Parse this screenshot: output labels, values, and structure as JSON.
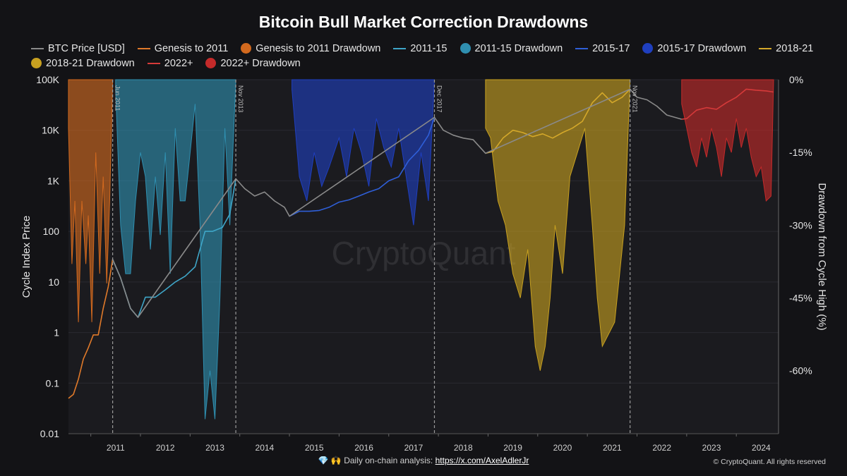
{
  "chart_data": {
    "type": "line",
    "title": "Bitcoin Bull Market Correction Drawdowns",
    "ylabel_left": "Cycle Index Price",
    "ylabel_right": "Drawdown from Cycle High (%)",
    "y_left_scale": "log",
    "y_left_range": [
      0.01,
      100000
    ],
    "y_left_ticks": [
      0.01,
      0.1,
      1,
      10,
      100,
      1000,
      10000,
      100000
    ],
    "y_left_tick_labels": [
      "0.01",
      "0.1",
      "1",
      "10",
      "100",
      "1K",
      "10K",
      "100K"
    ],
    "y_right_range": [
      -73,
      0
    ],
    "y_right_ticks": [
      0,
      -15,
      -30,
      -45,
      -60
    ],
    "y_right_tick_labels": [
      "0%",
      "-15%",
      "-30%",
      "-45%",
      "-60%"
    ],
    "x_range": [
      2010.55,
      2024.85
    ],
    "x_ticks": [
      2011,
      2012,
      2013,
      2014,
      2015,
      2016,
      2017,
      2018,
      2019,
      2020,
      2021,
      2022,
      2023,
      2024
    ],
    "x_tick_labels": [
      "2011",
      "2012",
      "2013",
      "2014",
      "2015",
      "2016",
      "2017",
      "2018",
      "2019",
      "2020",
      "2021",
      "2022",
      "2023",
      "2024"
    ],
    "cycle_markers": [
      {
        "x": 2011.44,
        "label": "Jun 2011"
      },
      {
        "x": 2013.92,
        "label": "Nov 2013"
      },
      {
        "x": 2017.92,
        "label": "Dec 2017"
      },
      {
        "x": 2021.86,
        "label": "Nov 2021"
      }
    ],
    "legend": [
      {
        "name": "BTC Price [USD]",
        "kind": "line",
        "color": "#8a8a8a"
      },
      {
        "name": "Genesis to 2011",
        "kind": "line",
        "color": "#e07a2a"
      },
      {
        "name": "Genesis to 2011 Drawdown",
        "kind": "area",
        "color": "#d2691e"
      },
      {
        "name": "2011-15",
        "kind": "line",
        "color": "#3fa6c8"
      },
      {
        "name": "2011-15 Drawdown",
        "kind": "area",
        "color": "#2f8fb0"
      },
      {
        "name": "2015-17",
        "kind": "line",
        "color": "#2f5fd8"
      },
      {
        "name": "2015-17 Drawdown",
        "kind": "area",
        "color": "#1f3fbf"
      },
      {
        "name": "2018-21",
        "kind": "line",
        "color": "#d4a82a"
      },
      {
        "name": "2018-21 Drawdown",
        "kind": "area",
        "color": "#c7a020"
      },
      {
        "name": "2022+",
        "kind": "line",
        "color": "#d63a3a"
      },
      {
        "name": "2022+ Drawdown",
        "kind": "area",
        "color": "#c42a2a"
      }
    ],
    "series": [
      {
        "name": "Genesis to 2011",
        "color": "#e07a2a",
        "x": [
          2010.55,
          2010.65,
          2010.75,
          2010.85,
          2010.95,
          2011.05,
          2011.15,
          2011.25,
          2011.35,
          2011.44
        ],
        "y": [
          0.05,
          0.06,
          0.12,
          0.3,
          0.5,
          0.9,
          0.9,
          3,
          8,
          28
        ]
      },
      {
        "name": "2011-15",
        "color": "#3fa6c8",
        "x": [
          2011.44,
          2011.6,
          2011.8,
          2011.95,
          2012.1,
          2012.3,
          2012.5,
          2012.7,
          2012.9,
          2013.1,
          2013.3,
          2013.45,
          2013.65,
          2013.8,
          2013.92
        ],
        "y": [
          28,
          12,
          3,
          2,
          5,
          5,
          7,
          10,
          13,
          20,
          100,
          100,
          120,
          220,
          1100
        ]
      },
      {
        "name": "2015-17",
        "color": "#2f5fd8",
        "x": [
          2015.0,
          2015.2,
          2015.4,
          2015.6,
          2015.8,
          2016.0,
          2016.2,
          2016.4,
          2016.6,
          2016.8,
          2017.0,
          2017.2,
          2017.4,
          2017.6,
          2017.8,
          2017.92
        ],
        "y": [
          200,
          250,
          250,
          260,
          300,
          380,
          420,
          500,
          600,
          700,
          1000,
          1200,
          2500,
          4000,
          8000,
          18000
        ]
      },
      {
        "name": "2018-21",
        "color": "#d4a82a",
        "x": [
          2018.95,
          2019.1,
          2019.3,
          2019.5,
          2019.7,
          2019.9,
          2020.1,
          2020.3,
          2020.5,
          2020.7,
          2020.9,
          2021.1,
          2021.3,
          2021.5,
          2021.7,
          2021.86
        ],
        "y": [
          3500,
          3800,
          7000,
          10000,
          9000,
          7500,
          8500,
          7000,
          9000,
          11000,
          15000,
          35000,
          55000,
          35000,
          45000,
          65000
        ]
      },
      {
        "name": "2022+",
        "color": "#d63a3a",
        "x": [
          2022.9,
          2023.0,
          2023.2,
          2023.4,
          2023.6,
          2023.8,
          2024.0,
          2024.2,
          2024.4,
          2024.6,
          2024.75
        ],
        "y": [
          16500,
          17000,
          25000,
          28000,
          26000,
          35000,
          45000,
          65000,
          62000,
          60000,
          57000
        ]
      },
      {
        "name": "BTC Price [USD]",
        "color": "#8a8a8a",
        "x": [
          2011.44,
          2011.6,
          2011.8,
          2011.95,
          2013.92,
          2014.1,
          2014.3,
          2014.5,
          2014.7,
          2014.9,
          2015.0,
          2017.92,
          2018.1,
          2018.3,
          2018.5,
          2018.7,
          2018.95,
          2021.86,
          2022.0,
          2022.2,
          2022.4,
          2022.6,
          2022.9
        ],
        "y": [
          28,
          12,
          3,
          2,
          1100,
          700,
          500,
          600,
          400,
          300,
          200,
          18000,
          10000,
          8000,
          7000,
          6500,
          3500,
          65000,
          45000,
          40000,
          30000,
          20000,
          16500
        ]
      }
    ],
    "drawdowns": [
      {
        "name": "Genesis to 2011 Drawdown",
        "color": "#d2691e",
        "x": [
          2010.55,
          2010.62,
          2010.68,
          2010.75,
          2010.82,
          2010.9,
          2010.95,
          2011.02,
          2011.1,
          2011.18,
          2011.25,
          2011.32,
          2011.38,
          2011.44
        ],
        "y": [
          -10,
          -38,
          -25,
          -50,
          -25,
          -38,
          -28,
          -50,
          -15,
          -40,
          -20,
          -42,
          -25,
          0
        ]
      },
      {
        "name": "2011-15 Drawdown",
        "color": "#2f8fb0",
        "x": [
          2011.5,
          2011.6,
          2011.7,
          2011.8,
          2011.9,
          2012.0,
          2012.1,
          2012.2,
          2012.3,
          2012.4,
          2012.5,
          2012.6,
          2012.7,
          2012.8,
          2012.9,
          2013.0,
          2013.1,
          2013.2,
          2013.3,
          2013.4,
          2013.5,
          2013.6,
          2013.7,
          2013.8,
          2013.92
        ],
        "y": [
          -2,
          -30,
          -40,
          -40,
          -25,
          -15,
          -20,
          -35,
          -20,
          -32,
          -15,
          -40,
          -10,
          -25,
          -25,
          -15,
          -5,
          -30,
          -70,
          -60,
          -70,
          -45,
          -10,
          -30,
          0
        ]
      },
      {
        "name": "2015-17 Drawdown",
        "color": "#1f3fbf",
        "x": [
          2015.05,
          2015.2,
          2015.35,
          2015.5,
          2015.65,
          2015.8,
          2016.0,
          2016.15,
          2016.3,
          2016.45,
          2016.6,
          2016.75,
          2016.9,
          2017.05,
          2017.2,
          2017.35,
          2017.5,
          2017.65,
          2017.8,
          2017.92
        ],
        "y": [
          -2,
          -20,
          -25,
          -15,
          -22,
          -18,
          -12,
          -20,
          -10,
          -15,
          -22,
          -8,
          -14,
          -18,
          -10,
          -20,
          -30,
          -15,
          -25,
          0
        ]
      },
      {
        "name": "2018-21 Drawdown",
        "color": "#c7a020",
        "x": [
          2018.95,
          2019.05,
          2019.2,
          2019.35,
          2019.5,
          2019.65,
          2019.8,
          2019.95,
          2020.05,
          2020.15,
          2020.25,
          2020.35,
          2020.5,
          2020.65,
          2020.8,
          2020.95,
          2021.1,
          2021.2,
          2021.3,
          2021.45,
          2021.55,
          2021.65,
          2021.75,
          2021.86
        ],
        "y": [
          -10,
          -12,
          -25,
          -30,
          -40,
          -45,
          -35,
          -55,
          -60,
          -55,
          -45,
          -30,
          -40,
          -20,
          -15,
          -10,
          -30,
          -45,
          -55,
          -52,
          -50,
          -40,
          -30,
          0
        ]
      },
      {
        "name": "2022+ Drawdown",
        "color": "#c42a2a",
        "x": [
          2022.9,
          2023.0,
          2023.1,
          2023.2,
          2023.3,
          2023.4,
          2023.5,
          2023.6,
          2023.7,
          2023.8,
          2023.9,
          2024.0,
          2024.1,
          2024.2,
          2024.3,
          2024.4,
          2024.5,
          2024.6,
          2024.7,
          2024.75
        ],
        "y": [
          -5,
          -10,
          -15,
          -18,
          -12,
          -16,
          -10,
          -14,
          -20,
          -12,
          -15,
          -8,
          -14,
          -10,
          -16,
          -20,
          -18,
          -25,
          -24,
          0
        ]
      }
    ],
    "watermark": "CryptoQuant"
  },
  "footer": {
    "text": "💎 🙌 Daily on-chain analysis: ",
    "link": "https://x.com/AxelAdlerJr",
    "copyright": "© CryptoQuant. All rights reserved"
  }
}
